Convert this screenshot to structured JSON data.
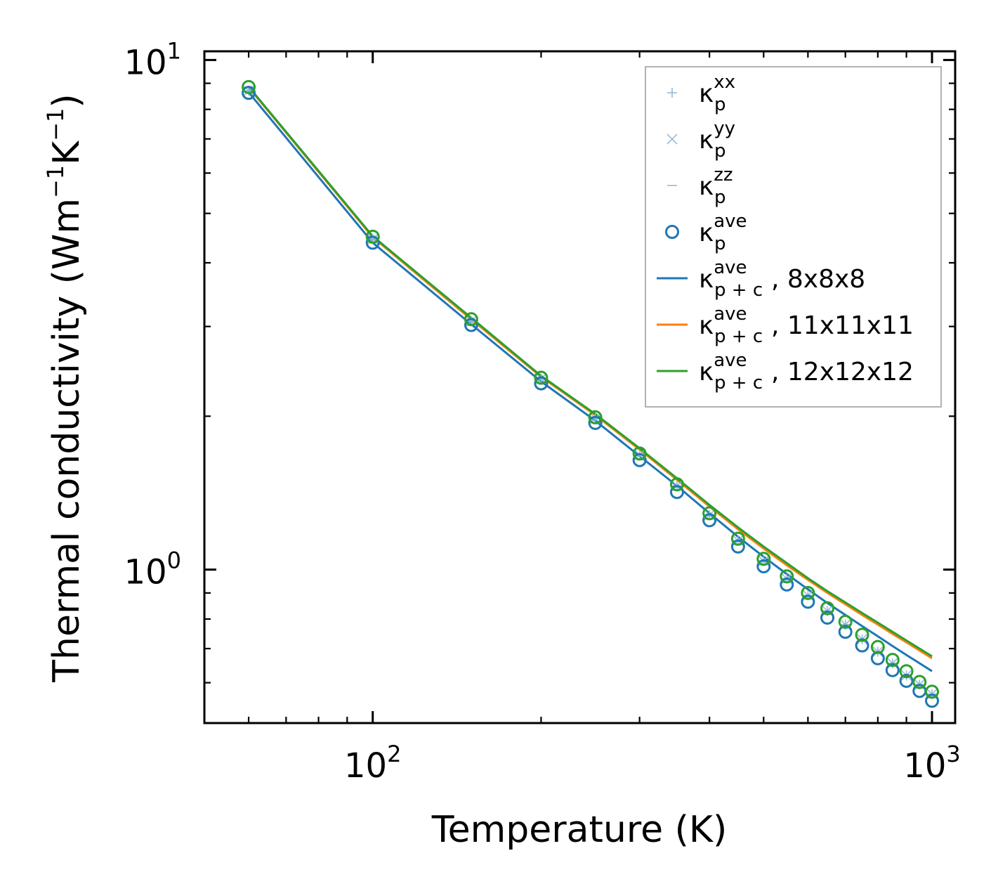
{
  "chart_data": {
    "type": "line",
    "scale": {
      "x": "log",
      "y": "log"
    },
    "xlabel": "Temperature (K)",
    "ylabel_parts": {
      "main": "Thermal conductivity (Wm",
      "exp1": "−1",
      "mid": "K",
      "exp2": "−1",
      "close": ")"
    },
    "xlim": [
      50,
      1100
    ],
    "ylim": [
      0.5,
      10.4
    ],
    "x_ticks": [
      {
        "base": "10",
        "exp": "2",
        "value": 100
      },
      {
        "base": "10",
        "exp": "3",
        "value": 1000
      }
    ],
    "y_ticks": [
      {
        "base": "10",
        "exp": "0",
        "value": 1
      },
      {
        "base": "10",
        "exp": "1",
        "value": 10
      }
    ],
    "x": [
      60,
      100,
      150,
      200,
      250,
      300,
      350,
      400,
      450,
      500,
      550,
      600,
      650,
      700,
      750,
      800,
      850,
      900,
      950,
      1000
    ],
    "series": [
      {
        "name": "κ_p^xx",
        "kind": "marker",
        "marker": "plus",
        "color": "#8fb7d4",
        "values": [
          8.7,
          4.45,
          3.07,
          2.37,
          1.98,
          1.68,
          1.46,
          1.28,
          1.14,
          1.04,
          0.96,
          0.89,
          0.83,
          0.78,
          0.73,
          0.69,
          0.655,
          0.62,
          0.595,
          0.57
        ]
      },
      {
        "name": "κ_p^yy",
        "kind": "marker",
        "marker": "x",
        "color": "#8fb7d4",
        "values": [
          8.7,
          4.45,
          3.07,
          2.37,
          1.98,
          1.68,
          1.46,
          1.28,
          1.14,
          1.04,
          0.96,
          0.89,
          0.83,
          0.78,
          0.73,
          0.69,
          0.655,
          0.62,
          0.595,
          0.57
        ]
      },
      {
        "name": "κ_p^zz",
        "kind": "marker",
        "marker": "dash",
        "color": "#8fb7d4",
        "values": [
          8.7,
          4.45,
          3.07,
          2.37,
          1.98,
          1.68,
          1.46,
          1.28,
          1.14,
          1.04,
          0.96,
          0.89,
          0.83,
          0.78,
          0.73,
          0.69,
          0.655,
          0.62,
          0.595,
          0.57
        ]
      },
      {
        "name": "κ_p^ave",
        "kind": "marker",
        "marker": "circle",
        "color": "#1f77b4",
        "values": [
          8.62,
          4.38,
          3.02,
          2.32,
          1.94,
          1.64,
          1.42,
          1.25,
          1.11,
          1.015,
          0.935,
          0.865,
          0.805,
          0.755,
          0.71,
          0.67,
          0.635,
          0.605,
          0.578,
          0.553
        ]
      },
      {
        "name": "κ_p^ave",
        "kind": "marker",
        "marker": "circle",
        "color": "#2ca02c",
        "legend": false,
        "values": [
          8.85,
          4.5,
          3.1,
          2.38,
          1.99,
          1.69,
          1.47,
          1.29,
          1.15,
          1.05,
          0.97,
          0.9,
          0.84,
          0.79,
          0.745,
          0.705,
          0.665,
          0.632,
          0.602,
          0.576
        ]
      },
      {
        "name": "κ_p+c^ave, 8x8x8",
        "kind": "line",
        "color": "#1f77b4",
        "values": [
          8.64,
          4.38,
          3.03,
          2.34,
          1.96,
          1.67,
          1.46,
          1.29,
          1.16,
          1.06,
          0.98,
          0.915,
          0.86,
          0.815,
          0.775,
          0.74,
          0.708,
          0.68,
          0.655,
          0.632
        ]
      },
      {
        "name": "κ_p+c^ave, 11x11x11",
        "kind": "line",
        "color": "#ff7f0e",
        "values": [
          8.83,
          4.49,
          3.1,
          2.39,
          2.01,
          1.72,
          1.5,
          1.33,
          1.2,
          1.1,
          1.02,
          0.955,
          0.9,
          0.855,
          0.815,
          0.78,
          0.748,
          0.72,
          0.694,
          0.67
        ]
      },
      {
        "name": "κ_p+c^ave, 12x12x12",
        "kind": "line",
        "color": "#2ca02c",
        "values": [
          8.86,
          4.51,
          3.12,
          2.4,
          2.02,
          1.73,
          1.51,
          1.34,
          1.21,
          1.11,
          1.03,
          0.962,
          0.907,
          0.862,
          0.822,
          0.787,
          0.755,
          0.726,
          0.7,
          0.676
        ]
      }
    ],
    "legend": {
      "placement": "top-right",
      "entries": [
        {
          "marker": "plus",
          "color": "#8fb7d4",
          "base": "κ",
          "sub": "p",
          "sup": "xx",
          "suffix": ""
        },
        {
          "marker": "x",
          "color": "#8fb7d4",
          "base": "κ",
          "sub": "p",
          "sup": "yy",
          "suffix": ""
        },
        {
          "marker": "dash",
          "color": "#8fb7d4",
          "base": "κ",
          "sub": "p",
          "sup": "zz",
          "suffix": ""
        },
        {
          "marker": "circle",
          "color": "#1f77b4",
          "base": "κ",
          "sub": "p",
          "sup": "ave",
          "suffix": ""
        },
        {
          "marker": "line",
          "color": "#1f77b4",
          "base": "κ",
          "sub": "p + c",
          "sup": "ave",
          "suffix": ", 8x8x8"
        },
        {
          "marker": "line",
          "color": "#ff7f0e",
          "base": "κ",
          "sub": "p + c",
          "sup": "ave",
          "suffix": ", 11x11x11"
        },
        {
          "marker": "line",
          "color": "#2ca02c",
          "base": "κ",
          "sub": "p + c",
          "sup": "ave",
          "suffix": ", 12x12x12"
        }
      ]
    }
  }
}
